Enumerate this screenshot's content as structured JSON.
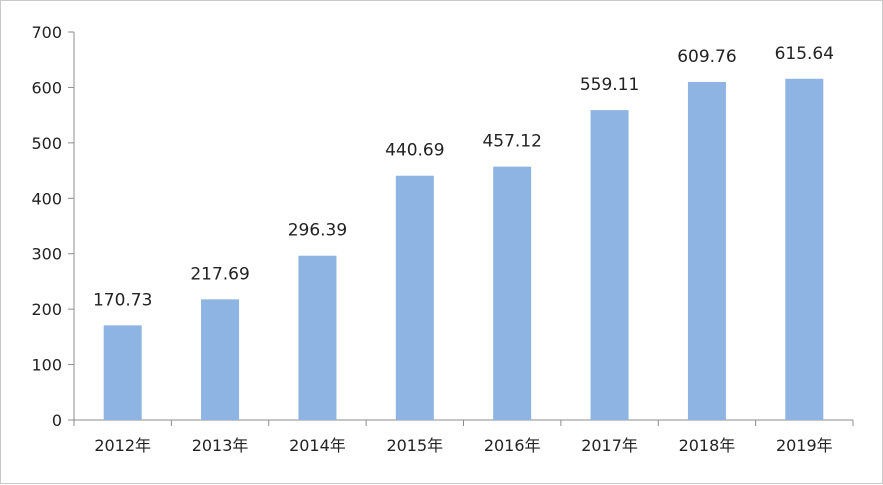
{
  "chart_data": {
    "type": "bar",
    "categories": [
      "2012年",
      "2013年",
      "2014年",
      "2015年",
      "2016年",
      "2017年",
      "2018年",
      "2019年"
    ],
    "values": [
      170.73,
      217.69,
      296.39,
      440.69,
      457.12,
      559.11,
      609.76,
      615.64
    ],
    "value_labels": [
      "170.73",
      "217.69",
      "296.39",
      "440.69",
      "457.12",
      "559.11",
      "609.76",
      "615.64"
    ],
    "y_ticks": [
      0,
      100,
      200,
      300,
      400,
      500,
      600,
      700
    ],
    "ylim": [
      0,
      700
    ],
    "title": "",
    "xlabel": "",
    "ylabel": "",
    "grid": false,
    "bar_color": "#8eb4e3",
    "axis_color": "#8c8c8c"
  }
}
